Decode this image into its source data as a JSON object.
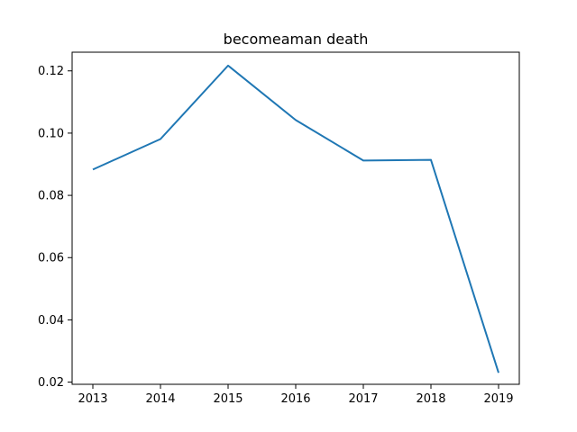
{
  "chart_data": {
    "type": "line",
    "title": "becomeaman death",
    "xlabel": "",
    "ylabel": "",
    "x": [
      "2013",
      "2014",
      "2015",
      "2016",
      "2017",
      "2018",
      "2019"
    ],
    "series": [
      {
        "values": [
          0.0883,
          0.0981,
          0.1217,
          0.1042,
          0.0912,
          0.0914,
          0.023
        ],
        "color": "#1f77b4"
      }
    ],
    "ylim": [
      0.0193,
      0.126
    ],
    "yticks": [
      0.02,
      0.04,
      0.06,
      0.08,
      0.1,
      0.12
    ],
    "ytick_labels": [
      "0.02",
      "0.04",
      "0.06",
      "0.08",
      "0.10",
      "0.12"
    ],
    "grid": false,
    "legend": "none"
  }
}
